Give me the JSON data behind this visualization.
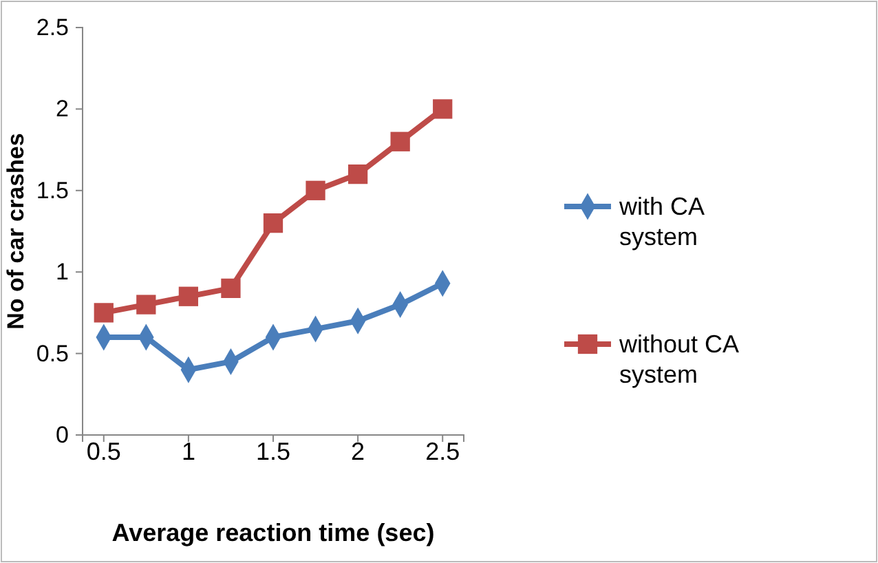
{
  "chart_data": {
    "type": "line",
    "xlabel": "Average reaction time (sec)",
    "ylabel": "No of car crashes",
    "x": [
      0.5,
      0.75,
      1,
      1.25,
      1.5,
      1.75,
      2,
      2.25,
      2.5
    ],
    "xlim": [
      0.375,
      2.625
    ],
    "xticks": [
      0.5,
      1,
      1.5,
      2,
      2.5
    ],
    "ylim": [
      0,
      2.5
    ],
    "yticks": [
      0,
      0.5,
      1,
      1.5,
      2,
      2.5
    ],
    "grid": false,
    "legend": "right",
    "series": [
      {
        "name": "with CA system",
        "color": "#4a7ebb",
        "marker": "diamond",
        "values": [
          0.6,
          0.6,
          0.4,
          0.45,
          0.6,
          0.65,
          0.7,
          0.8,
          0.93
        ]
      },
      {
        "name": "without CA system",
        "color": "#be4b48",
        "marker": "square",
        "values": [
          0.75,
          0.8,
          0.85,
          0.9,
          1.3,
          1.5,
          1.6,
          1.8,
          2.0
        ]
      }
    ]
  }
}
